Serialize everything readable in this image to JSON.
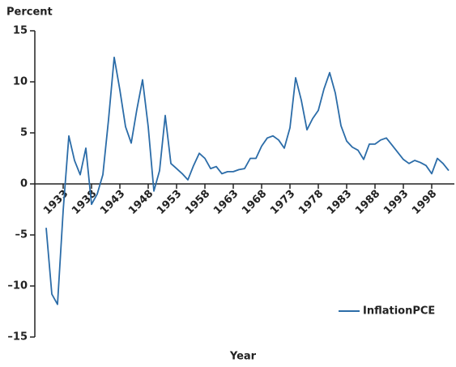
{
  "chart_data": {
    "type": "line",
    "y_axis_label": "Percent",
    "x_axis_label": "Year",
    "x": [
      1930,
      1931,
      1932,
      1933,
      1934,
      1935,
      1936,
      1937,
      1938,
      1939,
      1940,
      1941,
      1942,
      1943,
      1944,
      1945,
      1946,
      1947,
      1948,
      1949,
      1950,
      1951,
      1952,
      1953,
      1954,
      1955,
      1956,
      1957,
      1958,
      1959,
      1960,
      1961,
      1962,
      1963,
      1964,
      1965,
      1966,
      1967,
      1968,
      1969,
      1970,
      1971,
      1972,
      1973,
      1974,
      1975,
      1976,
      1977,
      1978,
      1979,
      1980,
      1981,
      1982,
      1983,
      1984,
      1985,
      1986,
      1987,
      1988,
      1989,
      1990,
      1991,
      1992,
      1993,
      1994,
      1995,
      1996,
      1997,
      1998,
      1999,
      2000,
      2001
    ],
    "series": [
      {
        "name": "InflationPCE",
        "color": "#2b6ca8",
        "values": [
          -4.3,
          -10.8,
          -11.8,
          -2.6,
          4.7,
          2.3,
          0.9,
          3.5,
          -2.0,
          -1.0,
          0.9,
          6.3,
          12.4,
          9.2,
          5.6,
          4.0,
          7.3,
          10.2,
          5.6,
          -0.7,
          1.3,
          6.7,
          2.0,
          1.5,
          1.0,
          0.4,
          1.8,
          3.0,
          2.5,
          1.5,
          1.7,
          1.0,
          1.2,
          1.2,
          1.4,
          1.5,
          2.5,
          2.5,
          3.7,
          4.5,
          4.7,
          4.3,
          3.5,
          5.5,
          10.4,
          8.2,
          5.3,
          6.4,
          7.2,
          9.3,
          10.9,
          8.9,
          5.7,
          4.2,
          3.6,
          3.3,
          2.4,
          3.9,
          3.9,
          4.3,
          4.5,
          3.8,
          3.1,
          2.4,
          2.0,
          2.3,
          2.1,
          1.8,
          1.0,
          2.5,
          2.0,
          1.3
        ]
      }
    ],
    "xlim": [
      1928,
      2002
    ],
    "xticks": [
      1933,
      1938,
      1943,
      1948,
      1953,
      1958,
      1963,
      1968,
      1973,
      1978,
      1983,
      1988,
      1993,
      1998
    ],
    "ylim": [
      -15,
      15
    ],
    "yticks": [
      {
        "value": -15,
        "label": "–15"
      },
      {
        "value": -10,
        "label": "–10"
      },
      {
        "value": -5,
        "label": "–5"
      },
      0,
      5,
      10,
      15
    ],
    "legend": "lower right"
  }
}
